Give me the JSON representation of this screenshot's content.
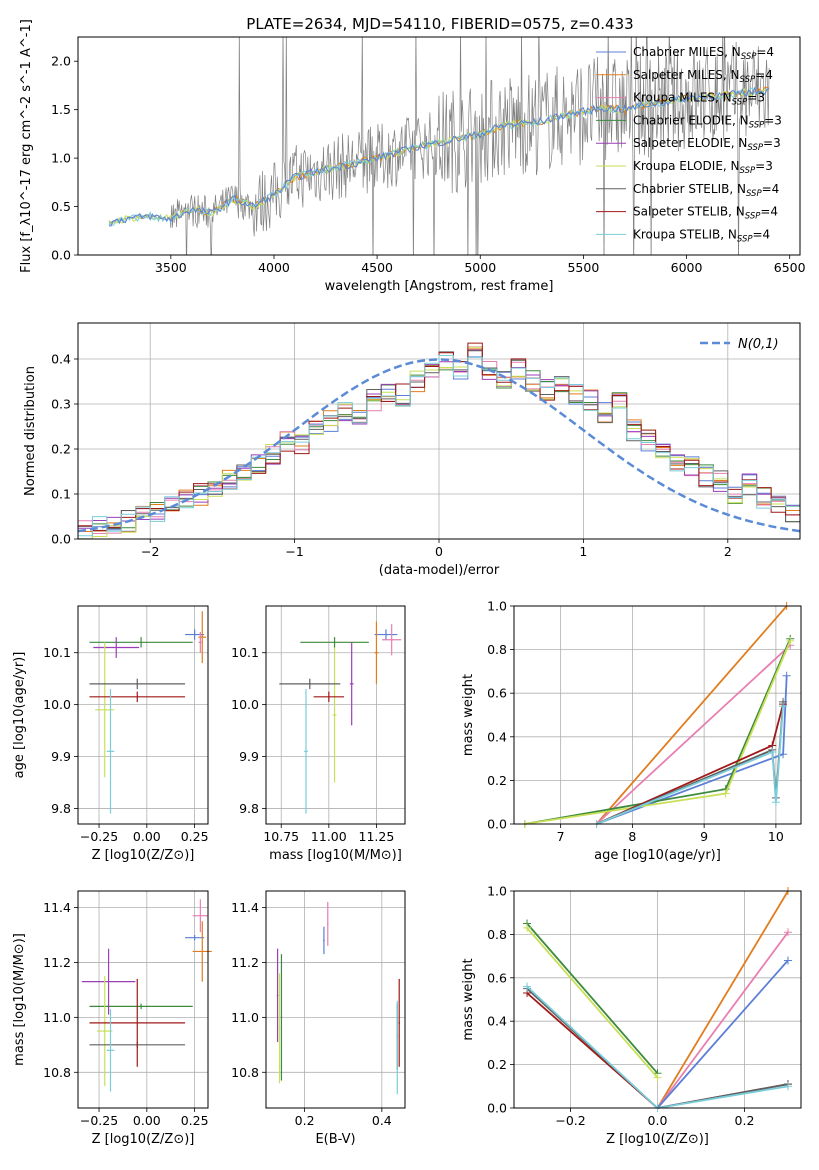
{
  "figure": {
    "title": "PLATE=2634, MJD=54110, FIBERID=0575, z=0.433"
  },
  "colors": {
    "Chabrier MILES": "#5b7fd6",
    "Salpeter MILES": "#e07d1f",
    "Kroupa MILES": "#e87fb0",
    "Chabrier ELODIE": "#3d8a3d",
    "Salpeter ELODIE": "#9b3fb8",
    "Kroupa ELODIE": "#c9df58",
    "Chabrier STELIB": "#606060",
    "Salpeter STELIB": "#a01818",
    "Kroupa STELIB": "#79cdd9",
    "data": "#808080",
    "normal": "#5b8bd6",
    "grid": "#b0b0b0"
  },
  "chart_data": [
    {
      "id": "spectrum",
      "type": "line",
      "xlabel": "wavelength [Angstrom, rest frame]",
      "ylabel": "Flux [f_λ10^-17 erg cm^-2 s^-1 A^-1]",
      "xlim": [
        3050,
        6550
      ],
      "ylim": [
        0,
        2.25
      ],
      "xticks": [
        3500,
        4000,
        4500,
        5000,
        5500,
        6000,
        6500
      ],
      "yticks": [
        0.0,
        0.5,
        1.0,
        1.5,
        2.0
      ],
      "ytick_labels": [
        "0.0",
        "0.5",
        "1.0",
        "1.5",
        "2.0"
      ],
      "grid": false,
      "legend_position": "top-right",
      "legend": [
        {
          "name": "Chabrier MILES",
          "nssp": "4"
        },
        {
          "name": "Salpeter MILES",
          "nssp": "4"
        },
        {
          "name": "Kroupa MILES",
          "nssp": "3"
        },
        {
          "name": "Chabrier ELODIE",
          "nssp": "3"
        },
        {
          "name": "Salpeter ELODIE",
          "nssp": "3"
        },
        {
          "name": "Kroupa ELODIE",
          "nssp": "3"
        },
        {
          "name": "Chabrier STELIB",
          "nssp": "4"
        },
        {
          "name": "Salpeter STELIB",
          "nssp": "4"
        },
        {
          "name": "Kroupa STELIB",
          "nssp": "4"
        }
      ],
      "model_continuum": {
        "x": [
          3200,
          3250,
          3300,
          3400,
          3500,
          3600,
          3700,
          3800,
          3900,
          4000,
          4100,
          4200,
          4300,
          4400,
          4500,
          4600,
          4700,
          4800,
          4900,
          5000,
          5100,
          5200,
          5300,
          5400,
          5500,
          5600,
          5700,
          5800,
          5900,
          6000,
          6100,
          6200,
          6300,
          6400
        ],
        "y": [
          0.33,
          0.36,
          0.38,
          0.4,
          0.37,
          0.47,
          0.43,
          0.58,
          0.5,
          0.62,
          0.8,
          0.86,
          0.9,
          0.95,
          1.0,
          1.06,
          1.12,
          1.16,
          1.2,
          1.25,
          1.33,
          1.36,
          1.38,
          1.44,
          1.48,
          1.52,
          1.5,
          1.55,
          1.58,
          1.62,
          1.64,
          1.65,
          1.68,
          1.7
        ]
      },
      "data_trace_note": "noisy observed spectrum drawn in gray from 3200 to 6400 Angstrom"
    },
    {
      "id": "residuals",
      "type": "line",
      "xlabel": "(data-model)/error",
      "ylabel": "Normed distribution",
      "xlim": [
        -2.5,
        2.5
      ],
      "ylim": [
        0,
        0.48
      ],
      "xticks": [
        -2,
        -1,
        0,
        1,
        2
      ],
      "xtick_labels": [
        "−2",
        "−1",
        "0",
        "1",
        "2"
      ],
      "yticks": [
        0.0,
        0.1,
        0.2,
        0.3,
        0.4
      ],
      "ytick_labels": [
        "0.0",
        "0.1",
        "0.2",
        "0.3",
        "0.4"
      ],
      "grid": true,
      "legend_position": "top-right",
      "legend_label": "N(0,1)",
      "hist_x_edges_start": -2.5,
      "hist_bin_width": 0.1,
      "hist_base": [
        0.02,
        0.03,
        0.03,
        0.04,
        0.05,
        0.06,
        0.07,
        0.09,
        0.1,
        0.11,
        0.13,
        0.15,
        0.17,
        0.19,
        0.22,
        0.21,
        0.24,
        0.26,
        0.28,
        0.27,
        0.31,
        0.33,
        0.32,
        0.35,
        0.37,
        0.4,
        0.38,
        0.42,
        0.37,
        0.36,
        0.38,
        0.35,
        0.33,
        0.34,
        0.32,
        0.31,
        0.28,
        0.3,
        0.24,
        0.22,
        0.2,
        0.17,
        0.16,
        0.14,
        0.13,
        0.1,
        0.12,
        0.09,
        0.07,
        0.06
      ]
    },
    {
      "id": "age_vs_Z",
      "type": "scatter",
      "xlabel": "Z [log10(Z/Z⊙)]",
      "ylabel": "age  [log10(age/yr)]",
      "xlim": [
        -0.36,
        0.32
      ],
      "ylim": [
        9.77,
        10.19
      ],
      "xticks": [
        -0.25,
        0.0,
        0.25
      ],
      "xtick_labels": [
        "−0.25",
        "0.00",
        "0.25"
      ],
      "yticks": [
        9.8,
        9.9,
        10.0,
        10.1
      ],
      "ytick_labels": [
        "9.8",
        "9.9",
        "10.0",
        "10.1"
      ],
      "grid": true,
      "points": [
        {
          "name": "Chabrier MILES",
          "x": 0.25,
          "y": 10.135,
          "xerr": 0.05,
          "yerr": 0.01
        },
        {
          "name": "Salpeter MILES",
          "x": 0.29,
          "y": 10.13,
          "xerr": 0.02,
          "yerr": 0.05
        },
        {
          "name": "Kroupa MILES",
          "x": 0.28,
          "y": 10.12,
          "xerr": 0.01,
          "yerr": 0.02
        },
        {
          "name": "Chabrier ELODIE",
          "x": -0.03,
          "y": 10.12,
          "xerr": 0.27,
          "yerr": 0.01
        },
        {
          "name": "Salpeter ELODIE",
          "x": -0.16,
          "y": 10.11,
          "xerr": 0.12,
          "yerr": 0.02
        },
        {
          "name": "Kroupa ELODIE",
          "x": -0.22,
          "y": 9.99,
          "xerr": 0.05,
          "yerr": 0.13
        },
        {
          "name": "Chabrier STELIB",
          "x": -0.05,
          "y": 10.04,
          "xerr": 0.25,
          "yerr": 0.01
        },
        {
          "name": "Salpeter STELIB",
          "x": -0.05,
          "y": 10.015,
          "xerr": 0.25,
          "yerr": 0.01
        },
        {
          "name": "Kroupa STELIB",
          "x": -0.19,
          "y": 9.91,
          "xerr": 0.02,
          "yerr": 0.12
        }
      ]
    },
    {
      "id": "age_vs_mass",
      "type": "scatter",
      "xlabel": "mass [log10(M/M⊙)]",
      "ylabel": "",
      "xlim": [
        10.67,
        11.4
      ],
      "ylim": [
        9.77,
        10.19
      ],
      "xticks": [
        10.75,
        11.0,
        11.25
      ],
      "xtick_labels": [
        "10.75",
        "11.00",
        "11.25"
      ],
      "yticks": [
        9.8,
        9.9,
        10.0,
        10.1
      ],
      "ytick_labels": [
        "9.8",
        "9.9",
        "10.0",
        "10.1"
      ],
      "grid": true,
      "points": [
        {
          "name": "Chabrier MILES",
          "x": 11.3,
          "y": 10.135,
          "xerr": 0.06,
          "yerr": 0.01
        },
        {
          "name": "Salpeter MILES",
          "x": 11.25,
          "y": 10.1,
          "xerr": 0.01,
          "yerr": 0.06
        },
        {
          "name": "Kroupa MILES",
          "x": 11.33,
          "y": 10.125,
          "xerr": 0.05,
          "yerr": 0.03
        },
        {
          "name": "Chabrier ELODIE",
          "x": 11.03,
          "y": 10.12,
          "xerr": 0.18,
          "yerr": 0.01
        },
        {
          "name": "Salpeter ELODIE",
          "x": 11.12,
          "y": 10.04,
          "xerr": 0.01,
          "yerr": 0.08
        },
        {
          "name": "Kroupa ELODIE",
          "x": 11.03,
          "y": 9.98,
          "xerr": 0.01,
          "yerr": 0.13
        },
        {
          "name": "Chabrier STELIB",
          "x": 10.9,
          "y": 10.04,
          "xerr": 0.16,
          "yerr": 0.01
        },
        {
          "name": "Salpeter STELIB",
          "x": 11.0,
          "y": 10.015,
          "xerr": 0.08,
          "yerr": 0.01
        },
        {
          "name": "Kroupa STELIB",
          "x": 10.88,
          "y": 9.91,
          "xerr": 0.01,
          "yerr": 0.12
        }
      ]
    },
    {
      "id": "massweight_vs_age",
      "type": "line",
      "xlabel": "age  [log10(age/yr)]",
      "ylabel": "mass weight",
      "xlim": [
        6.35,
        10.35
      ],
      "ylim": [
        0,
        1.0
      ],
      "xticks": [
        7,
        8,
        9,
        10
      ],
      "yticks": [
        0.0,
        0.2,
        0.4,
        0.6,
        0.8,
        1.0
      ],
      "ytick_labels": [
        "0.0",
        "0.2",
        "0.4",
        "0.6",
        "0.8",
        "1.0"
      ],
      "grid": true,
      "series": [
        {
          "name": "Salpeter MILES",
          "x": [
            7.5,
            10.15
          ],
          "y": [
            0.0,
            1.0
          ]
        },
        {
          "name": "Kroupa MILES",
          "x": [
            7.5,
            10.2
          ],
          "y": [
            0.0,
            0.82
          ]
        },
        {
          "name": "Chabrier MILES",
          "x": [
            7.5,
            10.1,
            10.15
          ],
          "y": [
            0.0,
            0.32,
            0.68
          ]
        },
        {
          "name": "Chabrier ELODIE",
          "x": [
            6.5,
            9.3,
            10.2
          ],
          "y": [
            0.0,
            0.16,
            0.85
          ]
        },
        {
          "name": "Kroupa ELODIE",
          "x": [
            6.5,
            9.3,
            10.2
          ],
          "y": [
            0.0,
            0.14,
            0.84
          ]
        },
        {
          "name": "Salpeter STELIB",
          "x": [
            7.5,
            9.95,
            10.1
          ],
          "y": [
            0.0,
            0.36,
            0.55
          ]
        },
        {
          "name": "Chabrier STELIB",
          "x": [
            7.5,
            9.95,
            10.0,
            10.1
          ],
          "y": [
            0.0,
            0.34,
            0.12,
            0.56
          ]
        },
        {
          "name": "Kroupa STELIB",
          "x": [
            7.5,
            9.95,
            10.0,
            10.1
          ],
          "y": [
            0.0,
            0.33,
            0.1,
            0.54
          ]
        }
      ]
    },
    {
      "id": "mass_vs_Z",
      "type": "scatter",
      "xlabel": "Z [log10(Z/Z⊙)]",
      "ylabel": "mass [log10(M/M⊙)]",
      "xlim": [
        -0.36,
        0.32
      ],
      "ylim": [
        10.67,
        11.46
      ],
      "xticks": [
        -0.25,
        0.0,
        0.25
      ],
      "xtick_labels": [
        "−0.25",
        "0.00",
        "0.25"
      ],
      "yticks": [
        10.8,
        11.0,
        11.2,
        11.4
      ],
      "ytick_labels": [
        "10.8",
        "11.0",
        "11.2",
        "11.4"
      ],
      "grid": true,
      "points": [
        {
          "name": "Chabrier MILES",
          "x": 0.25,
          "y": 11.29,
          "xerr": 0.05,
          "yerr": 0.01
        },
        {
          "name": "Salpeter MILES",
          "x": 0.29,
          "y": 11.24,
          "xerr": 0.05,
          "yerr": 0.11
        },
        {
          "name": "Kroupa MILES",
          "x": 0.28,
          "y": 11.37,
          "xerr": 0.04,
          "yerr": 0.06
        },
        {
          "name": "Chabrier ELODIE",
          "x": -0.03,
          "y": 11.04,
          "xerr": 0.27,
          "yerr": 0.01
        },
        {
          "name": "Salpeter ELODIE",
          "x": -0.2,
          "y": 11.13,
          "xerr": 0.14,
          "yerr": 0.12
        },
        {
          "name": "Kroupa ELODIE",
          "x": -0.22,
          "y": 10.95,
          "xerr": 0.04,
          "yerr": 0.2
        },
        {
          "name": "Chabrier STELIB",
          "x": -0.05,
          "y": 10.9,
          "xerr": 0.25,
          "yerr": 0.01
        },
        {
          "name": "Salpeter STELIB",
          "x": -0.05,
          "y": 10.98,
          "xerr": 0.25,
          "yerr": 0.16
        },
        {
          "name": "Kroupa STELIB",
          "x": -0.19,
          "y": 10.88,
          "xerr": 0.02,
          "yerr": 0.15
        }
      ]
    },
    {
      "id": "mass_vs_EBV",
      "type": "scatter",
      "xlabel": "E(B-V)",
      "ylabel": "",
      "xlim": [
        0.1,
        0.46
      ],
      "ylim": [
        10.67,
        11.46
      ],
      "xticks": [
        0.2,
        0.4
      ],
      "xtick_labels": [
        "0.2",
        "0.4"
      ],
      "yticks": [
        10.8,
        11.0,
        11.2,
        11.4
      ],
      "ytick_labels": [
        "10.8",
        "11.0",
        "11.2",
        "11.4"
      ],
      "grid": true,
      "points": [
        {
          "name": "Chabrier MILES",
          "x": 0.25,
          "y": 11.28,
          "xerr": 0.002,
          "yerr": 0.05
        },
        {
          "name": "Kroupa MILES",
          "x": 0.26,
          "y": 11.34,
          "xerr": 0.002,
          "yerr": 0.08
        },
        {
          "name": "Salpeter ELODIE",
          "x": 0.13,
          "y": 11.08,
          "xerr": 0.002,
          "yerr": 0.17
        },
        {
          "name": "Chabrier ELODIE",
          "x": 0.14,
          "y": 11.0,
          "xerr": 0.002,
          "yerr": 0.23
        },
        {
          "name": "Kroupa ELODIE",
          "x": 0.135,
          "y": 10.96,
          "xerr": 0.002,
          "yerr": 0.2
        },
        {
          "name": "Salpeter STELIB",
          "x": 0.445,
          "y": 10.98,
          "xerr": 0.002,
          "yerr": 0.16
        },
        {
          "name": "Chabrier STELIB",
          "x": 0.44,
          "y": 10.93,
          "xerr": 0.002,
          "yerr": 0.12
        },
        {
          "name": "Kroupa STELIB",
          "x": 0.44,
          "y": 10.89,
          "xerr": 0.002,
          "yerr": 0.17
        }
      ]
    },
    {
      "id": "massweight_vs_Z",
      "type": "line",
      "xlabel": "Z [log10(Z/Z⊙)]",
      "ylabel": "mass weight",
      "xlim": [
        -0.33,
        0.33
      ],
      "ylim": [
        0,
        1.0
      ],
      "xticks": [
        -0.2,
        0.0,
        0.2
      ],
      "xtick_labels": [
        "−0.2",
        "0.0",
        "0.2"
      ],
      "yticks": [
        0.0,
        0.2,
        0.4,
        0.6,
        0.8,
        1.0
      ],
      "ytick_labels": [
        "0.0",
        "0.2",
        "0.4",
        "0.6",
        "0.8",
        "1.0"
      ],
      "grid": true,
      "series": [
        {
          "name": "Salpeter MILES",
          "x": [
            0.0,
            0.3
          ],
          "y": [
            0.0,
            1.0
          ]
        },
        {
          "name": "Kroupa MILES",
          "x": [
            0.0,
            0.3
          ],
          "y": [
            0.0,
            0.81
          ]
        },
        {
          "name": "Chabrier MILES",
          "x": [
            0.0,
            0.3
          ],
          "y": [
            0.0,
            0.68
          ]
        },
        {
          "name": "Chabrier ELODIE",
          "x": [
            -0.3,
            0.0
          ],
          "y": [
            0.85,
            0.16
          ]
        },
        {
          "name": "Kroupa ELODIE",
          "x": [
            -0.3,
            0.0
          ],
          "y": [
            0.83,
            0.14
          ]
        },
        {
          "name": "Salpeter STELIB",
          "x": [
            -0.3,
            0.0,
            0.3
          ],
          "y": [
            0.53,
            0.0,
            0.11
          ]
        },
        {
          "name": "Chabrier STELIB",
          "x": [
            -0.3,
            0.0,
            0.3
          ],
          "y": [
            0.55,
            0.0,
            0.11
          ]
        },
        {
          "name": "Kroupa STELIB",
          "x": [
            -0.3,
            0.0,
            0.3
          ],
          "y": [
            0.56,
            0.0,
            0.1
          ]
        }
      ]
    }
  ]
}
